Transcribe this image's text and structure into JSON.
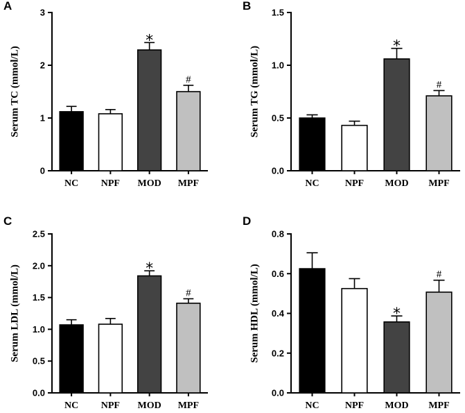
{
  "chart_data": [
    {
      "panel": "A",
      "type": "bar",
      "ylabel": "Serum TC (mmol/L)",
      "categories": [
        "NC",
        "NPF",
        "MOD",
        "MPF"
      ],
      "values": [
        1.12,
        1.08,
        2.29,
        1.5
      ],
      "errors": [
        0.1,
        0.08,
        0.14,
        0.12
      ],
      "annotations": [
        "",
        "",
        "*",
        "#"
      ],
      "ylim": [
        0,
        3
      ],
      "yticks": [
        0,
        1,
        2,
        3
      ],
      "ytick_labels": [
        "0",
        "1",
        "2",
        "3"
      ],
      "colors": [
        "#000000",
        "#ffffff",
        "#434343",
        "#c0c0c0"
      ]
    },
    {
      "panel": "B",
      "type": "bar",
      "ylabel": "Serum TG (mmol/L)",
      "categories": [
        "NC",
        "NPF",
        "MOD",
        "MPF"
      ],
      "values": [
        0.5,
        0.43,
        1.06,
        0.71
      ],
      "errors": [
        0.03,
        0.04,
        0.1,
        0.05
      ],
      "annotations": [
        "",
        "",
        "*",
        "#"
      ],
      "ylim": [
        0,
        1.5
      ],
      "yticks": [
        0,
        0.5,
        1.0,
        1.5
      ],
      "ytick_labels": [
        "0.0",
        "0.5",
        "1.0",
        "1.5"
      ],
      "colors": [
        "#000000",
        "#ffffff",
        "#434343",
        "#c0c0c0"
      ]
    },
    {
      "panel": "C",
      "type": "bar",
      "ylabel": "Serum LDL (mmol/L)",
      "categories": [
        "NC",
        "NPF",
        "MOD",
        "MPF"
      ],
      "values": [
        1.07,
        1.08,
        1.84,
        1.41
      ],
      "errors": [
        0.08,
        0.09,
        0.08,
        0.07
      ],
      "annotations": [
        "",
        "",
        "*",
        "#"
      ],
      "ylim": [
        0,
        2.5
      ],
      "yticks": [
        0,
        0.5,
        1.0,
        1.5,
        2.0,
        2.5
      ],
      "ytick_labels": [
        "0.0",
        "0.5",
        "1.0",
        "1.5",
        "2.0",
        "2.5"
      ],
      "colors": [
        "#000000",
        "#ffffff",
        "#434343",
        "#c0c0c0"
      ]
    },
    {
      "panel": "D",
      "type": "bar",
      "ylabel": "Serum HDL (mmol/L)",
      "categories": [
        "NC",
        "NPF",
        "MOD",
        "MPF"
      ],
      "values": [
        0.625,
        0.525,
        0.357,
        0.507
      ],
      "errors": [
        0.08,
        0.05,
        0.03,
        0.06
      ],
      "annotations": [
        "",
        "",
        "*",
        "#"
      ],
      "ylim": [
        0,
        0.8
      ],
      "yticks": [
        0,
        0.2,
        0.4,
        0.6,
        0.8
      ],
      "ytick_labels": [
        "0.0",
        "0.2",
        "0.4",
        "0.6",
        "0.8"
      ],
      "colors": [
        "#000000",
        "#ffffff",
        "#434343",
        "#c0c0c0"
      ]
    }
  ]
}
